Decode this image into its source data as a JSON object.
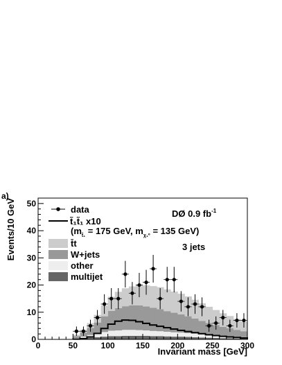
{
  "chart_data": {
    "type": "bar",
    "panel_label": "a)",
    "xlabel": "Invariant mass [GeV]",
    "ylabel": "Events/10 GeV",
    "xlim": [
      0,
      300
    ],
    "ylim": [
      0,
      52
    ],
    "x_ticks": [
      "0",
      "50",
      "100",
      "150",
      "200",
      "250",
      "300"
    ],
    "y_ticks": [
      "0",
      "10",
      "20",
      "30",
      "40",
      "50"
    ],
    "bin_width": 10,
    "bin_lower_edges": [
      50,
      60,
      70,
      80,
      90,
      100,
      110,
      120,
      130,
      140,
      150,
      160,
      170,
      180,
      190,
      200,
      210,
      220,
      230,
      240,
      250,
      260,
      270,
      280,
      290
    ],
    "stack": [
      {
        "name": "multijet",
        "color": "#666666",
        "values": [
          0.2,
          0.4,
          0.6,
          0.8,
          1.0,
          1.2,
          1.2,
          1.3,
          1.3,
          1.3,
          1.3,
          1.2,
          1.2,
          1.1,
          1.0,
          1.0,
          0.9,
          0.8,
          0.7,
          0.6,
          0.5,
          0.4,
          0.4,
          0.3,
          0.3
        ]
      },
      {
        "name": "other",
        "color": "#eeeeee",
        "values": [
          0.3,
          0.6,
          1.0,
          1.4,
          1.7,
          2.0,
          2.1,
          2.2,
          2.2,
          2.1,
          2.0,
          1.9,
          1.8,
          1.7,
          1.6,
          1.5,
          1.4,
          1.3,
          1.1,
          1.0,
          0.9,
          0.8,
          0.7,
          0.6,
          0.5
        ]
      },
      {
        "name": "W+jets",
        "color": "#999999",
        "values": [
          0.7,
          1.5,
          2.6,
          4.0,
          5.8,
          7.3,
          8.2,
          8.7,
          9.0,
          9.1,
          8.8,
          8.5,
          8.1,
          7.6,
          7.2,
          6.7,
          6.2,
          5.6,
          5.0,
          4.4,
          3.9,
          3.4,
          3.0,
          2.6,
          2.2
        ]
      },
      {
        "name": "t̄t",
        "color": "#cccccc",
        "values": [
          0.5,
          1.0,
          1.8,
          2.8,
          4.0,
          5.2,
          6.0,
          6.6,
          7.0,
          7.5,
          7.8,
          8.0,
          8.1,
          8.0,
          7.8,
          7.6,
          7.3,
          6.9,
          6.5,
          6.0,
          5.5,
          5.0,
          4.5,
          4.0,
          3.6
        ]
      }
    ],
    "signal": {
      "name": "t̃₁t̃₁ x10",
      "values": [
        0.1,
        0.3,
        0.9,
        2.2,
        4.0,
        5.6,
        6.7,
        7.1,
        7.0,
        6.5,
        5.9,
        5.3,
        4.8,
        4.3,
        3.8,
        3.3,
        2.9,
        2.5,
        2.1,
        1.7,
        1.4,
        1.1,
        0.9,
        0.7,
        0.5
      ]
    },
    "data": {
      "name": "data",
      "x": [
        55,
        65,
        75,
        85,
        95,
        105,
        115,
        125,
        135,
        145,
        155,
        165,
        175,
        185,
        195,
        205,
        215,
        225,
        235,
        245,
        255,
        265,
        275,
        285,
        295
      ],
      "y": [
        3,
        3,
        5,
        8,
        13,
        15,
        15,
        24,
        17,
        20,
        21,
        26,
        15,
        22,
        22,
        14,
        12,
        13,
        12,
        5,
        6,
        8,
        5,
        7,
        7
      ]
    },
    "legend": {
      "placement": "top-left",
      "entries": [
        {
          "label": "data",
          "kind": "marker"
        },
        {
          "label": "t̃₁t̃₁ x10",
          "kind": "line"
        },
        {
          "label": "(m",
          "kind": "note"
        },
        {
          "label": "t̄t",
          "kind": "fill",
          "color": "#cccccc"
        },
        {
          "label": "W+jets",
          "kind": "fill",
          "color": "#999999"
        },
        {
          "label": "other",
          "kind": "fill",
          "color": "#eeeeee"
        },
        {
          "label": "multijet",
          "kind": "fill",
          "color": "#666666"
        }
      ],
      "note_parts": {
        "open": "(m",
        "sub1": "t̃₁",
        "mid": " = 175 GeV, m",
        "sub2": "χ₁⁰",
        "close": " = 135 GeV)"
      }
    },
    "annotations": {
      "experiment": "DØ 0.9 fb",
      "experiment_sup": "-1",
      "jets": "3 jets"
    },
    "grid": false
  }
}
